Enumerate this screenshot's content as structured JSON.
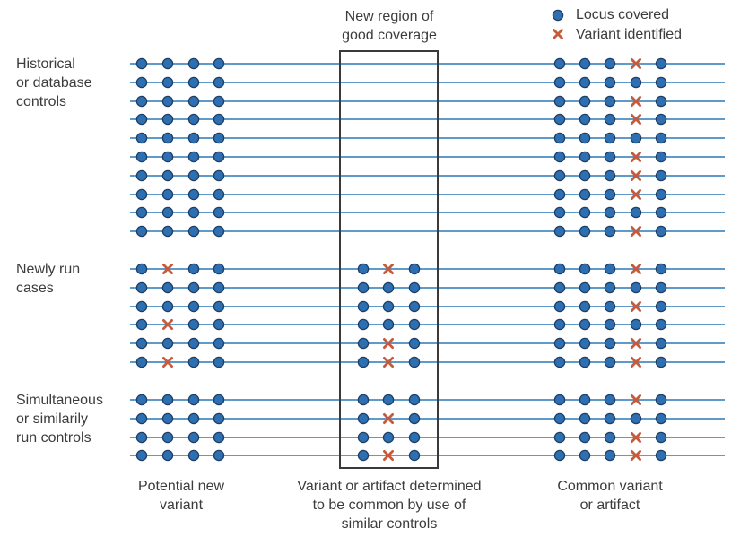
{
  "top_label": "New region of\ngood coverage",
  "legend": [
    {
      "symbol": "dot",
      "label": "Locus covered",
      "icon": "blue-dot-icon"
    },
    {
      "symbol": "cross",
      "label": "Variant identified",
      "icon": "red-cross-icon"
    }
  ],
  "groups": [
    {
      "label": "Historical\nor database\ncontrols",
      "rows": [
        {
          "left": [
            0,
            0,
            0,
            0
          ],
          "middle": null,
          "right": [
            0,
            0,
            0,
            1,
            0
          ]
        },
        {
          "left": [
            0,
            0,
            0,
            0
          ],
          "middle": null,
          "right": [
            0,
            0,
            0,
            0,
            0
          ]
        },
        {
          "left": [
            0,
            0,
            0,
            0
          ],
          "middle": null,
          "right": [
            0,
            0,
            0,
            1,
            0
          ]
        },
        {
          "left": [
            0,
            0,
            0,
            0
          ],
          "middle": null,
          "right": [
            0,
            0,
            0,
            1,
            0
          ]
        },
        {
          "left": [
            0,
            0,
            0,
            0
          ],
          "middle": null,
          "right": [
            0,
            0,
            0,
            0,
            0
          ]
        },
        {
          "left": [
            0,
            0,
            0,
            0
          ],
          "middle": null,
          "right": [
            0,
            0,
            0,
            1,
            0
          ]
        },
        {
          "left": [
            0,
            0,
            0,
            0
          ],
          "middle": null,
          "right": [
            0,
            0,
            0,
            1,
            0
          ]
        },
        {
          "left": [
            0,
            0,
            0,
            0
          ],
          "middle": null,
          "right": [
            0,
            0,
            0,
            1,
            0
          ]
        },
        {
          "left": [
            0,
            0,
            0,
            0
          ],
          "middle": null,
          "right": [
            0,
            0,
            0,
            0,
            0
          ]
        },
        {
          "left": [
            0,
            0,
            0,
            0
          ],
          "middle": null,
          "right": [
            0,
            0,
            0,
            1,
            0
          ]
        }
      ]
    },
    {
      "label": "Newly run\ncases",
      "rows": [
        {
          "left": [
            0,
            1,
            0,
            0
          ],
          "middle": [
            0,
            1,
            0
          ],
          "right": [
            0,
            0,
            0,
            1,
            0
          ]
        },
        {
          "left": [
            0,
            0,
            0,
            0
          ],
          "middle": [
            0,
            0,
            0
          ],
          "right": [
            0,
            0,
            0,
            0,
            0
          ]
        },
        {
          "left": [
            0,
            0,
            0,
            0
          ],
          "middle": [
            0,
            0,
            0
          ],
          "right": [
            0,
            0,
            0,
            1,
            0
          ]
        },
        {
          "left": [
            0,
            1,
            0,
            0
          ],
          "middle": [
            0,
            0,
            0
          ],
          "right": [
            0,
            0,
            0,
            0,
            0
          ]
        },
        {
          "left": [
            0,
            0,
            0,
            0
          ],
          "middle": [
            0,
            1,
            0
          ],
          "right": [
            0,
            0,
            0,
            1,
            0
          ]
        },
        {
          "left": [
            0,
            1,
            0,
            0
          ],
          "middle": [
            0,
            1,
            0
          ],
          "right": [
            0,
            0,
            0,
            1,
            0
          ]
        }
      ]
    },
    {
      "label": "Simultaneous\nor similarily\nrun controls",
      "rows": [
        {
          "left": [
            0,
            0,
            0,
            0
          ],
          "middle": [
            0,
            0,
            0
          ],
          "right": [
            0,
            0,
            0,
            1,
            0
          ]
        },
        {
          "left": [
            0,
            0,
            0,
            0
          ],
          "middle": [
            0,
            1,
            0
          ],
          "right": [
            0,
            0,
            0,
            0,
            0
          ]
        },
        {
          "left": [
            0,
            0,
            0,
            0
          ],
          "middle": [
            0,
            0,
            0
          ],
          "right": [
            0,
            0,
            0,
            1,
            0
          ]
        },
        {
          "left": [
            0,
            0,
            0,
            0
          ],
          "middle": [
            0,
            1,
            0
          ],
          "right": [
            0,
            0,
            0,
            1,
            0
          ]
        }
      ]
    }
  ],
  "bottom_labels": {
    "left": "Potential new\nvariant",
    "middle": "Variant or artifact determined\nto be common by use of\nsimilar controls",
    "right": "Common variant\nor artifact"
  },
  "colors": {
    "line": "#2b78b5",
    "dot_fill": "#2e6fb2",
    "dot_stroke": "#1d3f66",
    "cross": "#c85a3c",
    "box": "#3a3a3a"
  }
}
